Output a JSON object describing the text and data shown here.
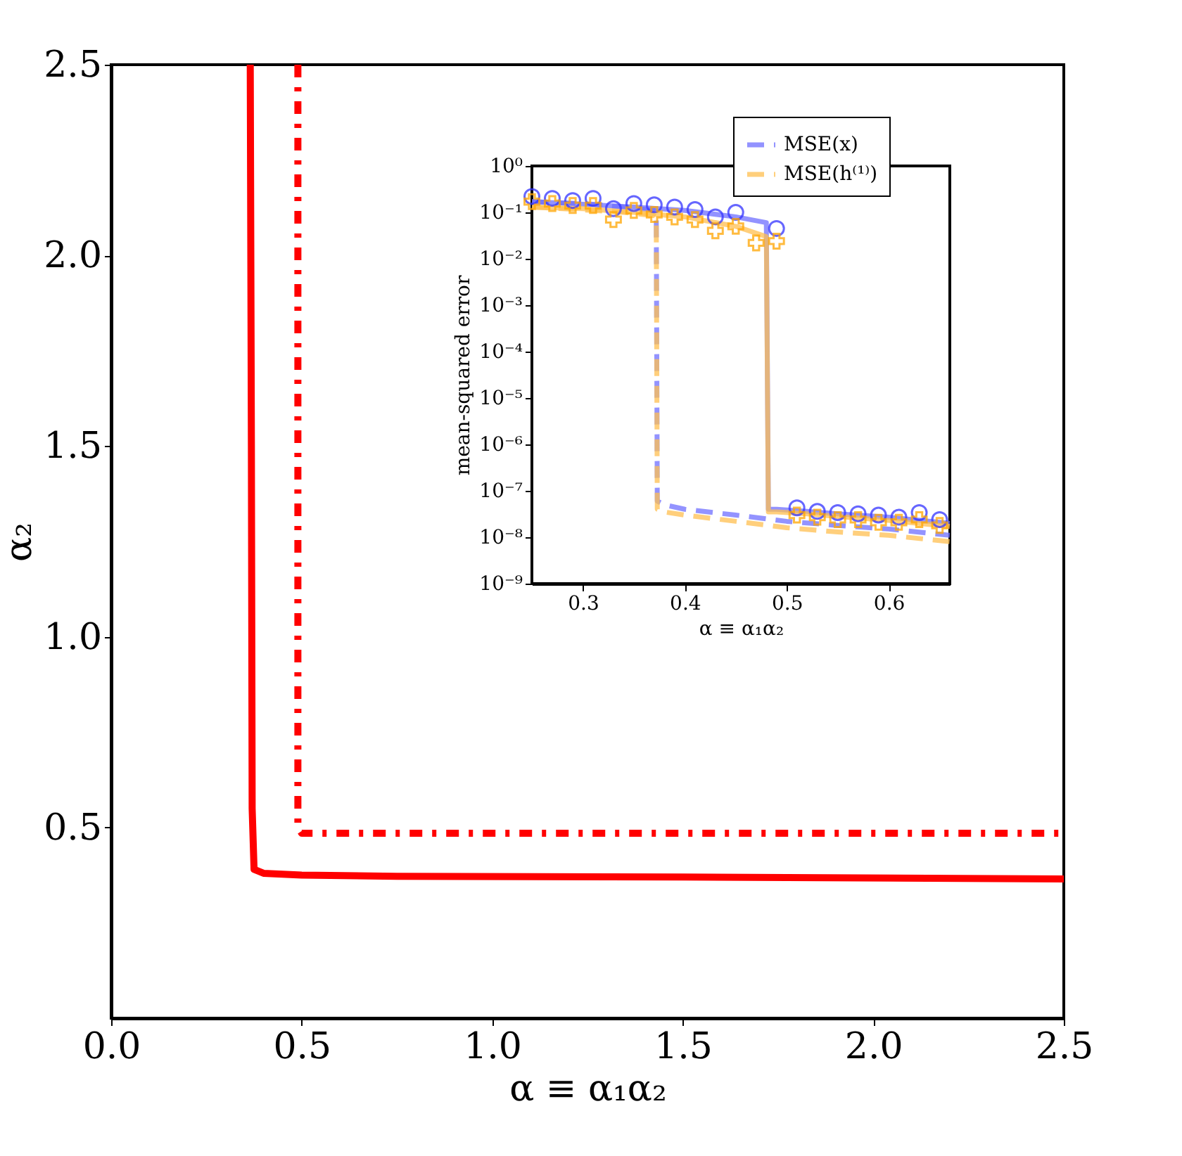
{
  "chart_data": [
    {
      "type": "line",
      "xlabel": "α ≡ α₁α₂",
      "ylabel": "α₂",
      "xlim": [
        0,
        2.5
      ],
      "ylim": [
        0,
        2.5
      ],
      "xticks": [
        {
          "value": 0,
          "label": "0.0"
        },
        0.5,
        {
          "value": 1,
          "label": "1.0"
        },
        1.5,
        {
          "value": 2,
          "label": "2.0"
        },
        2.5
      ],
      "yticks": [
        0.5,
        {
          "value": 1,
          "label": "1.0"
        },
        1.5,
        {
          "value": 2,
          "label": "2.0"
        },
        2.5
      ],
      "grid": false,
      "legend": false,
      "series": [
        {
          "color": "#ff0000",
          "line_style": "solid",
          "x": [
            0.365,
            0.368,
            0.37,
            0.375,
            0.4,
            0.5,
            0.75,
            1.5,
            2.5
          ],
          "values": [
            2.5,
            1.5,
            0.55,
            0.39,
            0.38,
            0.375,
            0.372,
            0.37,
            0.365
          ]
        },
        {
          "color": "#ff0000",
          "line_style": "dashdot",
          "x": [
            0.49,
            0.49,
            0.5,
            2.5
          ],
          "values": [
            2.5,
            0.5,
            0.485,
            0.485
          ]
        }
      ]
    },
    {
      "type": "line",
      "xlabel": "α ≡ α₁α₂",
      "ylabel": "mean-squared error",
      "log": "y",
      "xlim": [
        0.25,
        0.66
      ],
      "ylim": [
        1e-09,
        1
      ],
      "xticks": [
        0.3,
        0.4,
        0.5,
        0.6
      ],
      "yticks": [
        {
          "value": 1,
          "label": "10⁰"
        },
        {
          "value": 0.1,
          "label": "10⁻¹"
        },
        {
          "value": 0.01,
          "label": "10⁻²"
        },
        {
          "value": 0.001,
          "label": "10⁻³"
        },
        {
          "value": 0.0001,
          "label": "10⁻⁴"
        },
        {
          "value": 1e-05,
          "label": "10⁻⁵"
        },
        {
          "value": 1e-06,
          "label": "10⁻⁶"
        },
        {
          "value": 1e-07,
          "label": "10⁻⁷"
        },
        {
          "value": 1e-08,
          "label": "10⁻⁸"
        },
        {
          "value": 1e-09,
          "label": "10⁻⁹"
        }
      ],
      "grid": false,
      "legend": "top right",
      "series": [
        {
          "name": "MSE(x)",
          "type": "line",
          "color": "#6f6fff",
          "line_style": "dashed",
          "x": [
            0.25,
            0.28,
            0.31,
            0.34,
            0.37,
            0.372,
            0.373,
            0.38,
            0.4,
            0.45,
            0.5,
            0.55,
            0.6,
            0.66
          ],
          "values": [
            0.17,
            0.16,
            0.15,
            0.13,
            0.11,
            0.1,
            6e-08,
            5e-08,
            4e-08,
            3e-08,
            2.2e-08,
            1.8e-08,
            1.5e-08,
            1.1e-08
          ]
        },
        {
          "name": "MSE(h⁽¹⁾)",
          "type": "line",
          "color": "#ffbf50",
          "line_style": "dashed",
          "x": [
            0.25,
            0.28,
            0.31,
            0.34,
            0.37,
            0.372,
            0.373,
            0.38,
            0.4,
            0.45,
            0.5,
            0.55,
            0.6,
            0.66
          ],
          "values": [
            0.13,
            0.12,
            0.11,
            0.1,
            0.085,
            0.08,
            4e-08,
            3.5e-08,
            3e-08,
            2.2e-08,
            1.6e-08,
            1.3e-08,
            1.1e-08,
            8e-09
          ]
        },
        {
          "type": "line",
          "color": "#6f6fff",
          "line_style": "solid",
          "x": [
            0.25,
            0.3,
            0.35,
            0.4,
            0.45,
            0.48,
            0.482,
            0.49,
            0.52,
            0.55,
            0.6,
            0.66
          ],
          "values": [
            0.17,
            0.15,
            0.13,
            0.11,
            0.08,
            0.06,
            4e-08,
            4e-08,
            3.6e-08,
            3.2e-08,
            2.7e-08,
            2e-08
          ]
        },
        {
          "type": "line",
          "color": "#ffbf50",
          "line_style": "solid",
          "x": [
            0.25,
            0.3,
            0.35,
            0.4,
            0.45,
            0.48,
            0.482,
            0.49,
            0.52,
            0.55,
            0.6,
            0.66
          ],
          "values": [
            0.13,
            0.12,
            0.1,
            0.08,
            0.05,
            0.03,
            3.5e-08,
            3.5e-08,
            3.2e-08,
            2.8e-08,
            2.3e-08,
            1.7e-08
          ]
        },
        {
          "type": "scatter",
          "marker": "circle",
          "color": "#3333ff",
          "x": [
            0.25,
            0.27,
            0.29,
            0.31,
            0.33,
            0.35,
            0.37,
            0.39,
            0.41,
            0.43,
            0.45,
            0.47,
            0.49,
            0.51,
            0.53,
            0.55,
            0.57,
            0.59,
            0.61,
            0.63,
            0.65
          ],
          "values": [
            0.22,
            0.2,
            0.18,
            0.2,
            0.12,
            0.155,
            0.145,
            0.13,
            0.115,
            0.08,
            0.1,
            null,
            0.045,
            4.3e-08,
            3.6e-08,
            3.4e-08,
            3.2e-08,
            3e-08,
            2.7e-08,
            3.4e-08,
            2.4e-08
          ]
        },
        {
          "type": "scatter",
          "marker": "cross",
          "color": "#ffa500",
          "x": [
            0.25,
            0.27,
            0.29,
            0.31,
            0.33,
            0.35,
            0.37,
            0.39,
            0.41,
            0.43,
            0.45,
            0.47,
            0.49,
            0.51,
            0.53,
            0.55,
            0.57,
            0.59,
            0.61,
            0.63,
            0.65
          ],
          "values": [
            0.17,
            0.155,
            0.14,
            0.14,
            0.07,
            0.11,
            0.09,
            0.08,
            0.07,
            0.04,
            0.05,
            0.022,
            0.024,
            3e-08,
            2.7e-08,
            2.4e-08,
            2.4e-08,
            2.1e-08,
            2.1e-08,
            2.4e-08,
            1.8e-08
          ]
        }
      ]
    }
  ]
}
